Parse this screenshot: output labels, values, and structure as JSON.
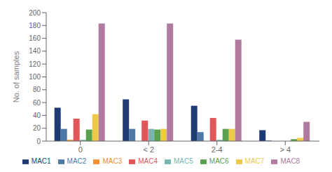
{
  "chart_data": {
    "type": "bar",
    "categories": [
      "0",
      "< 2",
      "2-4",
      "> 4"
    ],
    "ylabel": "No. of samples",
    "ylim": [
      0,
      200
    ],
    "yticks": [
      0,
      20,
      40,
      60,
      80,
      100,
      120,
      140,
      160,
      180,
      200
    ],
    "grid": false,
    "legend": "bottom",
    "series": [
      {
        "name": "MAC1",
        "color": "#1f3b73",
        "values": [
          52,
          65,
          55,
          17
        ]
      },
      {
        "name": "MAC2",
        "color": "#4e79a7",
        "values": [
          19,
          19,
          14,
          1
        ]
      },
      {
        "name": "MAC3",
        "color": "#f28e2b",
        "values": [
          2,
          0,
          0,
          0
        ]
      },
      {
        "name": "MAC4",
        "color": "#e15759",
        "values": [
          35,
          32,
          36,
          0
        ]
      },
      {
        "name": "MAC5",
        "color": "#76b7b2",
        "values": [
          2,
          19,
          2,
          0
        ]
      },
      {
        "name": "MAC6",
        "color": "#59a14f",
        "values": [
          18,
          18,
          19,
          3
        ]
      },
      {
        "name": "MAC7",
        "color": "#edc948",
        "values": [
          42,
          19,
          19,
          5
        ]
      },
      {
        "name": "MAC8",
        "color": "#b07aa1",
        "values": [
          183,
          183,
          158,
          30
        ]
      }
    ]
  }
}
